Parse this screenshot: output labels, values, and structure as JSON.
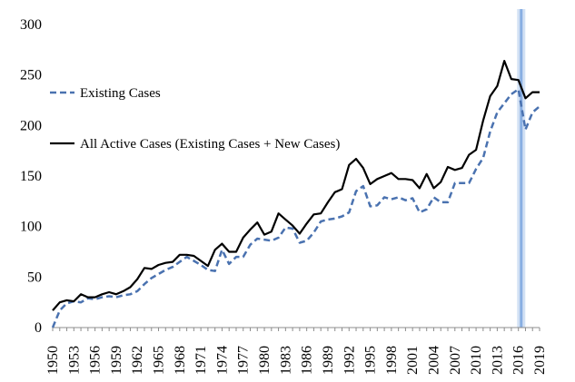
{
  "chart_data": {
    "type": "line",
    "title": "",
    "xlabel": "",
    "ylabel": "",
    "ylim": [
      0,
      300
    ],
    "xlim": [
      1950,
      2019
    ],
    "yticks": [
      0,
      50,
      100,
      150,
      200,
      250,
      300
    ],
    "xtick_labels": [
      "1950",
      "1953",
      "1956",
      "1959",
      "1962",
      "1965",
      "1968",
      "1971",
      "1974",
      "1977",
      "1980",
      "1983",
      "1986",
      "1989",
      "1992",
      "1995",
      "1998",
      "2001",
      "2004",
      "2007",
      "2010",
      "2013",
      "2016",
      "2019"
    ],
    "grid": false,
    "legend_placement": "upper-left",
    "highlight": {
      "x": 2016.4,
      "color": "#7fa8e0"
    },
    "x": [
      1950,
      1951,
      1952,
      1953,
      1954,
      1955,
      1956,
      1957,
      1958,
      1959,
      1960,
      1961,
      1962,
      1963,
      1964,
      1965,
      1966,
      1967,
      1968,
      1969,
      1970,
      1971,
      1972,
      1973,
      1974,
      1975,
      1976,
      1977,
      1978,
      1979,
      1980,
      1981,
      1982,
      1983,
      1984,
      1985,
      1986,
      1987,
      1988,
      1989,
      1990,
      1991,
      1992,
      1993,
      1994,
      1995,
      1996,
      1997,
      1998,
      1999,
      2000,
      2001,
      2002,
      2003,
      2004,
      2005,
      2006,
      2007,
      2008,
      2009,
      2010,
      2011,
      2012,
      2013,
      2014,
      2015,
      2016,
      2017,
      2018,
      2019
    ],
    "series": [
      {
        "name": "Existing Cases",
        "color": "#4a72b0",
        "style": "dashed",
        "values": [
          0,
          17,
          24,
          26,
          25,
          29,
          28,
          30,
          31,
          30,
          32,
          33,
          36,
          43,
          49,
          53,
          57,
          60,
          65,
          70,
          66,
          62,
          57,
          56,
          77,
          63,
          70,
          70,
          82,
          88,
          87,
          86,
          89,
          99,
          98,
          84,
          86,
          94,
          105,
          107,
          108,
          110,
          114,
          135,
          140,
          120,
          121,
          129,
          127,
          129,
          126,
          128,
          114,
          117,
          129,
          124,
          124,
          143,
          143,
          143,
          157,
          168,
          194,
          213,
          222,
          231,
          236,
          196,
          213,
          219
        ]
      },
      {
        "name": "All Active Cases (Existing Cases + New Cases)",
        "color": "#000000",
        "style": "solid",
        "values": [
          17,
          25,
          27,
          26,
          33,
          30,
          30,
          33,
          35,
          33,
          36,
          40,
          48,
          59,
          58,
          62,
          64,
          65,
          72,
          72,
          71,
          66,
          61,
          77,
          83,
          75,
          75,
          89,
          97,
          104,
          92,
          95,
          113,
          107,
          101,
          93,
          103,
          112,
          113,
          124,
          134,
          137,
          161,
          167,
          158,
          142,
          147,
          150,
          153,
          147,
          147,
          146,
          138,
          152,
          138,
          144,
          159,
          156,
          158,
          171,
          176,
          205,
          229,
          239,
          264,
          246,
          245,
          227,
          233,
          233
        ]
      }
    ]
  }
}
